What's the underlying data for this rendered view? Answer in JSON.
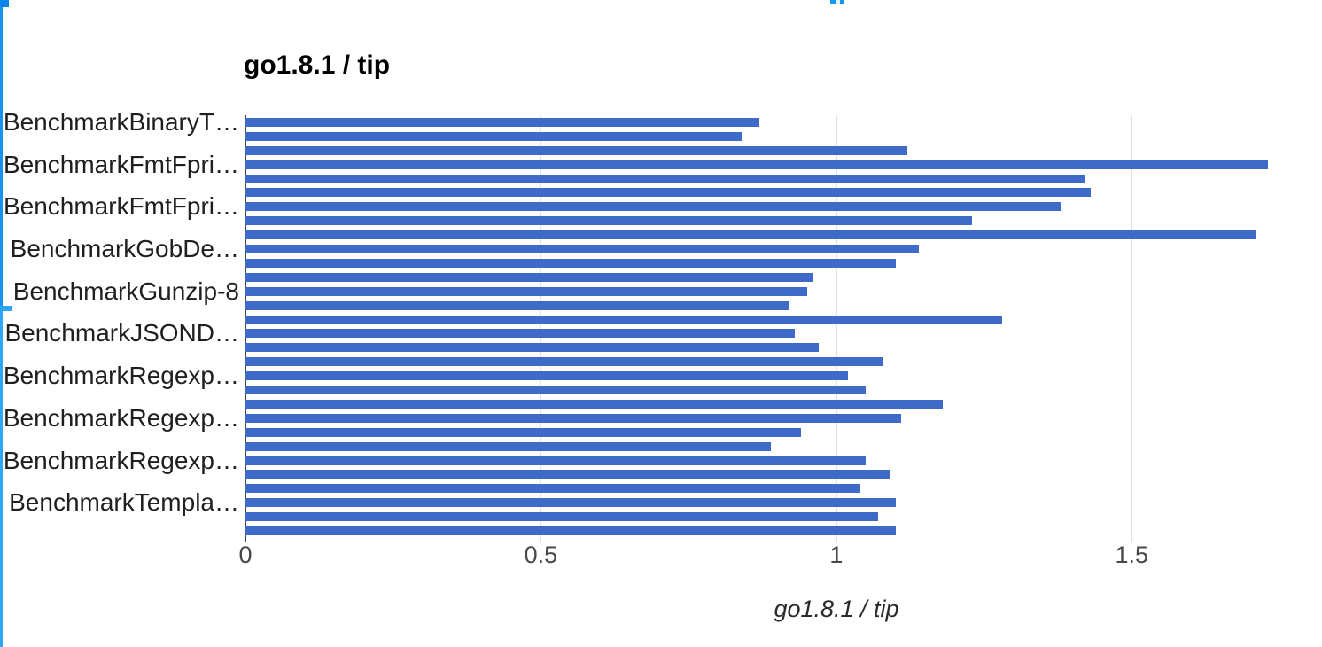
{
  "page": {
    "decorations": {
      "corner_block_color": "#0d84e8",
      "left_line_top_color": "#1593ee",
      "left_notch_color": "#2da6f7",
      "left_line_bottom_color": "#31a5f6",
      "top_marker_color": "#0f9af0"
    }
  },
  "chart_data": {
    "type": "bar",
    "orientation": "horizontal",
    "title": "go1.8.1 / tip",
    "xlabel": "go1.8.1 / tip",
    "ylabel": "",
    "xlim": [
      0,
      1.822
    ],
    "xtick_values": [
      0,
      0.5,
      1,
      1.5
    ],
    "xticks": [
      "0",
      "0.5",
      "1",
      "1.5"
    ],
    "grid": true,
    "legend_position": "none",
    "bar_color": "#3d6bc7",
    "rows": [
      {
        "label": "BenchmarkBinaryT…",
        "value": 0.87
      },
      {
        "label": "",
        "value": 0.84
      },
      {
        "label": "",
        "value": 1.12
      },
      {
        "label": "BenchmarkFmtFpri…",
        "value": 1.73
      },
      {
        "label": "",
        "value": 1.42
      },
      {
        "label": "",
        "value": 1.43
      },
      {
        "label": "BenchmarkFmtFpri…",
        "value": 1.38
      },
      {
        "label": "",
        "value": 1.23
      },
      {
        "label": "",
        "value": 1.71
      },
      {
        "label": "BenchmarkGobDe…",
        "value": 1.14
      },
      {
        "label": "",
        "value": 1.1
      },
      {
        "label": "",
        "value": 0.96
      },
      {
        "label": "BenchmarkGunzip-8",
        "value": 0.95
      },
      {
        "label": "",
        "value": 0.92
      },
      {
        "label": "",
        "value": 1.28
      },
      {
        "label": "BenchmarkJSOND…",
        "value": 0.93
      },
      {
        "label": "",
        "value": 0.97
      },
      {
        "label": "",
        "value": 1.08
      },
      {
        "label": "BenchmarkRegexp…",
        "value": 1.02
      },
      {
        "label": "",
        "value": 1.05
      },
      {
        "label": "",
        "value": 1.18
      },
      {
        "label": "BenchmarkRegexp…",
        "value": 1.11
      },
      {
        "label": "",
        "value": 0.94
      },
      {
        "label": "",
        "value": 0.89
      },
      {
        "label": "BenchmarkRegexp…",
        "value": 1.05
      },
      {
        "label": "",
        "value": 1.09
      },
      {
        "label": "",
        "value": 1.04
      },
      {
        "label": "BenchmarkTempla…",
        "value": 1.1
      },
      {
        "label": "",
        "value": 1.07
      },
      {
        "label": "",
        "value": 1.1
      }
    ]
  }
}
